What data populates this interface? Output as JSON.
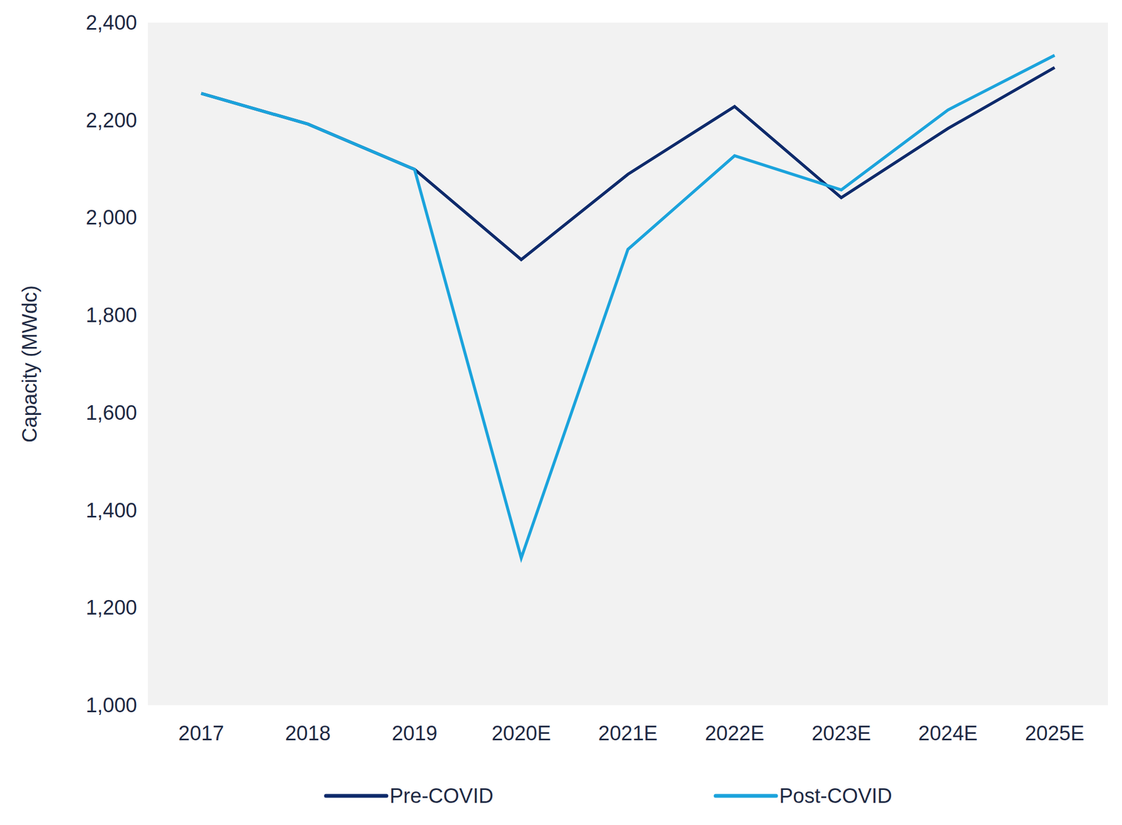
{
  "chart_data": {
    "type": "line",
    "y_label": "Capacity (MWdc)",
    "categories": [
      "2017",
      "2018",
      "2019",
      "2020E",
      "2021E",
      "2022E",
      "2023E",
      "2024E",
      "2025E"
    ],
    "series": [
      {
        "name": "Pre-COVID",
        "color": "#0e2a6b",
        "values": [
          2255,
          2192,
          2099,
          1914,
          2089,
          2228,
          2041,
          2183,
          2308
        ]
      },
      {
        "name": "Post-COVID",
        "color": "#1ba3dc",
        "values": [
          2255,
          2192,
          2099,
          1302,
          1935,
          2127,
          2057,
          2221,
          2333
        ]
      }
    ],
    "ylim": [
      1000,
      2400
    ],
    "yticks": [
      {
        "value": 1000,
        "label": "1,000"
      },
      {
        "value": 1200,
        "label": "1,200"
      },
      {
        "value": 1400,
        "label": "1,400"
      },
      {
        "value": 1600,
        "label": "1,600"
      },
      {
        "value": 1800,
        "label": "1,800"
      },
      {
        "value": 2000,
        "label": "2,000"
      },
      {
        "value": 2200,
        "label": "2,200"
      },
      {
        "value": 2400,
        "label": "2,400"
      }
    ],
    "grid": false,
    "legend": "bottom"
  }
}
